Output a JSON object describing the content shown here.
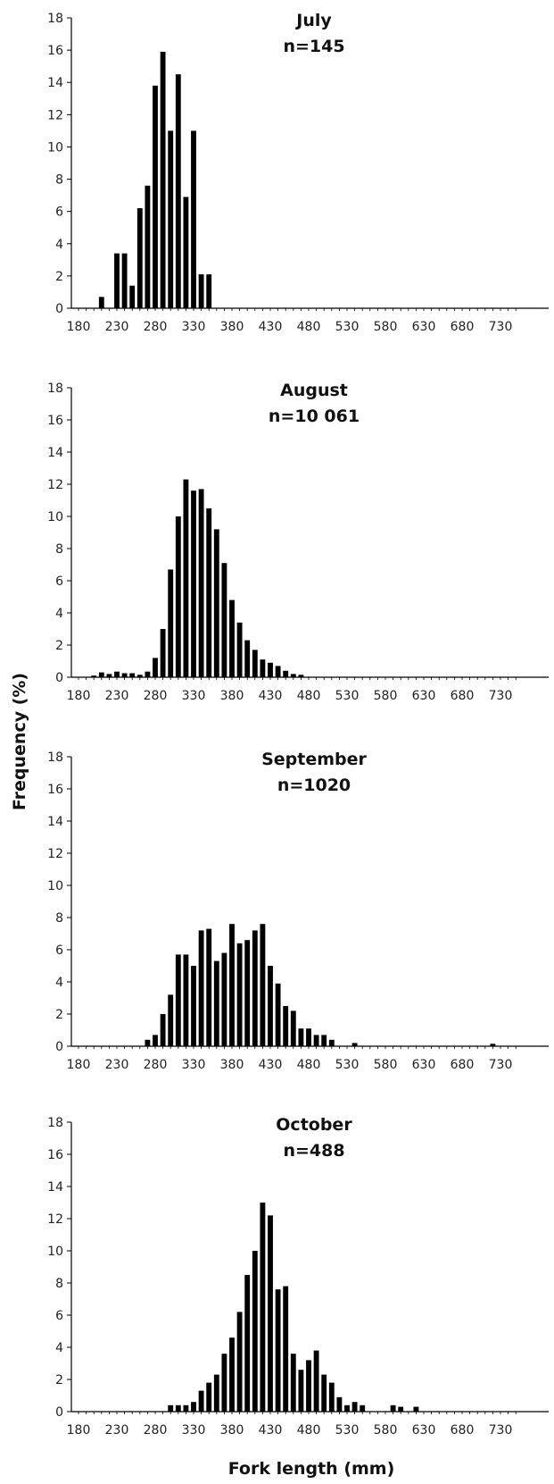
{
  "ylabel": "Frequency (%)",
  "xlabel": "Fork length (mm)",
  "chart_data": [
    {
      "type": "bar",
      "title": "July",
      "subtitle": "n=145",
      "xlabel": "Fork length (mm)",
      "ylabel": "Frequency (%)",
      "ylim": [
        0,
        18
      ],
      "yticks": [
        0,
        2,
        4,
        6,
        8,
        10,
        12,
        14,
        16,
        18
      ],
      "xlim": [
        180,
        750
      ],
      "xticks": [
        180,
        230,
        280,
        330,
        380,
        430,
        480,
        530,
        580,
        630,
        680,
        730
      ],
      "bin_width": 10,
      "x": [
        210,
        220,
        230,
        240,
        250,
        260,
        270,
        280,
        290,
        300,
        310,
        320,
        330,
        340,
        350
      ],
      "values": [
        0.7,
        0,
        3.4,
        3.4,
        1.4,
        6.2,
        7.6,
        13.8,
        15.9,
        11.0,
        14.5,
        6.9,
        11.0,
        2.1,
        2.1
      ]
    },
    {
      "type": "bar",
      "title": "August",
      "subtitle": "n=10 061",
      "xlabel": "Fork length (mm)",
      "ylabel": "Frequency (%)",
      "ylim": [
        0,
        18
      ],
      "yticks": [
        0,
        2,
        4,
        6,
        8,
        10,
        12,
        14,
        16,
        18
      ],
      "xlim": [
        180,
        750
      ],
      "xticks": [
        180,
        230,
        280,
        330,
        380,
        430,
        480,
        530,
        580,
        630,
        680,
        730
      ],
      "bin_width": 10,
      "x": [
        200,
        210,
        220,
        230,
        240,
        250,
        260,
        270,
        280,
        290,
        300,
        310,
        320,
        330,
        340,
        350,
        360,
        370,
        380,
        390,
        400,
        410,
        420,
        430,
        440,
        450,
        460,
        470
      ],
      "values": [
        0.1,
        0.3,
        0.2,
        0.35,
        0.25,
        0.25,
        0.15,
        0.35,
        1.2,
        3.0,
        6.7,
        10.0,
        12.3,
        11.6,
        11.7,
        10.5,
        9.2,
        7.1,
        4.8,
        3.4,
        2.3,
        1.7,
        1.1,
        0.9,
        0.7,
        0.4,
        0.2,
        0.15
      ]
    },
    {
      "type": "bar",
      "title": "September",
      "subtitle": "n=1020",
      "xlabel": "Fork length (mm)",
      "ylabel": "Frequency (%)",
      "ylim": [
        0,
        18
      ],
      "yticks": [
        0,
        2,
        4,
        6,
        8,
        10,
        12,
        14,
        16,
        18
      ],
      "xlim": [
        180,
        750
      ],
      "xticks": [
        180,
        230,
        280,
        330,
        380,
        430,
        480,
        530,
        580,
        630,
        680,
        730
      ],
      "bin_width": 10,
      "x": [
        270,
        280,
        290,
        300,
        310,
        320,
        330,
        340,
        350,
        360,
        370,
        380,
        390,
        400,
        410,
        420,
        430,
        440,
        450,
        460,
        470,
        480,
        490,
        500,
        510,
        540,
        720
      ],
      "values": [
        0.4,
        0.7,
        2.0,
        3.2,
        5.7,
        5.7,
        5.0,
        7.2,
        7.3,
        5.3,
        5.8,
        7.6,
        6.4,
        6.6,
        7.2,
        7.6,
        5.0,
        3.9,
        2.5,
        2.2,
        1.1,
        1.1,
        0.7,
        0.7,
        0.4,
        0.2,
        0.15
      ]
    },
    {
      "type": "bar",
      "title": "October",
      "subtitle": "n=488",
      "xlabel": "Fork length (mm)",
      "ylabel": "Frequency (%)",
      "ylim": [
        0,
        18
      ],
      "yticks": [
        0,
        2,
        4,
        6,
        8,
        10,
        12,
        14,
        16,
        18
      ],
      "xlim": [
        180,
        750
      ],
      "xticks": [
        180,
        230,
        280,
        330,
        380,
        430,
        480,
        530,
        580,
        630,
        680,
        730
      ],
      "bin_width": 10,
      "x": [
        300,
        310,
        320,
        330,
        340,
        350,
        360,
        370,
        380,
        390,
        400,
        410,
        420,
        430,
        440,
        450,
        460,
        470,
        480,
        490,
        500,
        510,
        520,
        530,
        540,
        550,
        590,
        600,
        620
      ],
      "values": [
        0.4,
        0.4,
        0.4,
        0.6,
        1.3,
        1.8,
        2.3,
        3.6,
        4.6,
        6.2,
        8.5,
        10.0,
        13.0,
        12.2,
        7.6,
        7.8,
        3.6,
        2.6,
        3.2,
        3.8,
        2.3,
        1.8,
        0.9,
        0.4,
        0.6,
        0.4,
        0.4,
        0.3,
        0.3
      ]
    }
  ]
}
